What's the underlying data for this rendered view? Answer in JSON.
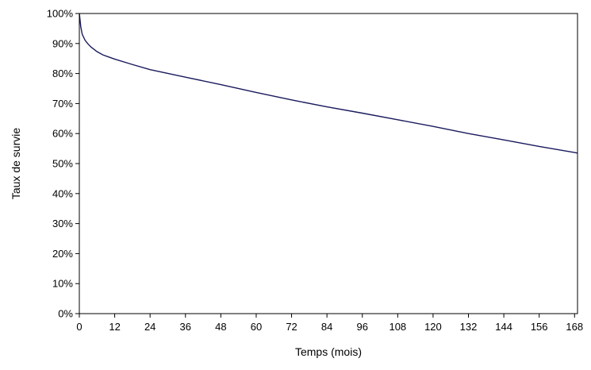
{
  "chart_data": {
    "type": "line",
    "title": "",
    "xlabel": "Temps (mois)",
    "ylabel": "Taux de survie",
    "xlim": [
      0,
      169
    ],
    "ylim": [
      0,
      100
    ],
    "xticks": [
      0,
      12,
      24,
      36,
      48,
      60,
      72,
      84,
      96,
      108,
      120,
      132,
      144,
      156,
      168
    ],
    "yticks": [
      {
        "value": 0,
        "label": "0%"
      },
      {
        "value": 10,
        "label": "10%"
      },
      {
        "value": 20,
        "label": "20%"
      },
      {
        "value": 30,
        "label": "30%"
      },
      {
        "value": 40,
        "label": "40%"
      },
      {
        "value": 50,
        "label": "50%"
      },
      {
        "value": 60,
        "label": "60%"
      },
      {
        "value": 70,
        "label": "70%"
      },
      {
        "value": 80,
        "label": "80%"
      },
      {
        "value": 90,
        "label": "90%"
      },
      {
        "value": 100,
        "label": "100%"
      }
    ],
    "grid": false,
    "legend": "none",
    "line_color": "#1a1a5e",
    "series": [
      {
        "x": [
          0,
          0.5,
          1,
          2,
          3,
          4,
          6,
          8,
          10,
          12,
          18,
          24,
          36,
          48,
          60,
          72,
          84,
          96,
          108,
          120,
          132,
          144,
          156,
          168,
          169
        ],
        "y": [
          100,
          95.5,
          93,
          91,
          89.8,
          88.8,
          87.3,
          86.2,
          85.5,
          84.8,
          83,
          81.3,
          78.8,
          76.3,
          73.7,
          71.2,
          68.9,
          66.8,
          64.6,
          62.4,
          60,
          57.9,
          55.7,
          53.7,
          53.5
        ]
      }
    ]
  }
}
